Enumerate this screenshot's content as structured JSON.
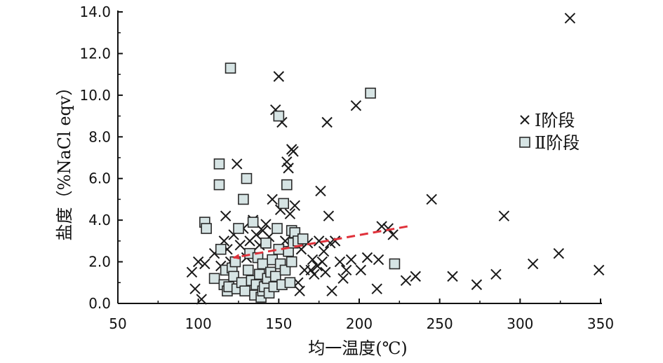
{
  "chart_data": {
    "type": "scatter",
    "xlabel": "均一温度(℃)",
    "ylabel": "盐度（%NaCl eqv）",
    "xlim": [
      50,
      350
    ],
    "ylim": [
      0,
      14
    ],
    "x_ticks": [
      "50",
      "100",
      "150",
      "200",
      "250",
      "300",
      "350"
    ],
    "y_ticks": [
      "0.0",
      "2.0",
      "4.0",
      "6.0",
      "8.0",
      "10.0",
      "12.0",
      "14.0"
    ],
    "legend_position": "right",
    "grid": false,
    "series": [
      {
        "name": "Ⅰ阶段",
        "marker": "x",
        "color": "#1a1a1a",
        "points": [
          [
            96,
            1.5
          ],
          [
            98,
            0.7
          ],
          [
            100,
            2.0
          ],
          [
            102,
            0.2
          ],
          [
            104,
            1.9
          ],
          [
            110,
            2.4
          ],
          [
            114,
            1.8
          ],
          [
            116,
            3.0
          ],
          [
            117,
            4.2
          ],
          [
            118,
            2.6
          ],
          [
            120,
            2.0
          ],
          [
            122,
            3.3
          ],
          [
            124,
            6.7
          ],
          [
            126,
            2.8
          ],
          [
            128,
            3.6
          ],
          [
            130,
            2.2
          ],
          [
            132,
            3.0
          ],
          [
            134,
            4.0
          ],
          [
            136,
            3.3
          ],
          [
            138,
            2.8
          ],
          [
            140,
            3.5
          ],
          [
            142,
            3.8
          ],
          [
            144,
            3.2
          ],
          [
            146,
            5.0
          ],
          [
            148,
            9.3
          ],
          [
            150,
            10.9
          ],
          [
            151,
            4.5
          ],
          [
            152,
            8.7
          ],
          [
            154,
            3.0
          ],
          [
            155,
            6.8
          ],
          [
            156,
            6.5
          ],
          [
            157,
            4.3
          ],
          [
            158,
            7.4
          ],
          [
            159,
            7.3
          ],
          [
            160,
            4.7
          ],
          [
            160,
            3.2
          ],
          [
            162,
            1.0
          ],
          [
            163,
            0.6
          ],
          [
            164,
            2.6
          ],
          [
            166,
            1.6
          ],
          [
            168,
            2.9
          ],
          [
            170,
            1.6
          ],
          [
            171,
            2.1
          ],
          [
            172,
            1.4
          ],
          [
            174,
            1.8
          ],
          [
            175,
            3.0
          ],
          [
            176,
            5.4
          ],
          [
            177,
            2.0
          ],
          [
            178,
            2.5
          ],
          [
            179,
            1.5
          ],
          [
            180,
            8.7
          ],
          [
            181,
            4.2
          ],
          [
            182,
            2.9
          ],
          [
            183,
            0.6
          ],
          [
            185,
            3.0
          ],
          [
            188,
            2.0
          ],
          [
            190,
            1.2
          ],
          [
            192,
            1.6
          ],
          [
            195,
            2.1
          ],
          [
            198,
            9.5
          ],
          [
            201,
            1.6
          ],
          [
            205,
            2.2
          ],
          [
            211,
            0.7
          ],
          [
            212,
            2.1
          ],
          [
            214,
            3.7
          ],
          [
            218,
            3.6
          ],
          [
            221,
            3.3
          ],
          [
            229,
            1.1
          ],
          [
            235,
            1.3
          ],
          [
            245,
            5.0
          ],
          [
            258,
            1.3
          ],
          [
            273,
            0.9
          ],
          [
            285,
            1.4
          ],
          [
            290,
            4.2
          ],
          [
            308,
            1.9
          ],
          [
            324,
            2.4
          ],
          [
            331,
            13.7
          ],
          [
            349,
            1.6
          ]
        ]
      },
      {
        "name": "Ⅱ阶段",
        "marker": "square",
        "color": "#d6e4e4",
        "points": [
          [
            104,
            3.9
          ],
          [
            105,
            3.6
          ],
          [
            110,
            1.2
          ],
          [
            113,
            6.7
          ],
          [
            113,
            5.7
          ],
          [
            114,
            2.6
          ],
          [
            116,
            0.9
          ],
          [
            117,
            1.6
          ],
          [
            118,
            0.6
          ],
          [
            119,
            0.8
          ],
          [
            120,
            11.3
          ],
          [
            121,
            1.7
          ],
          [
            122,
            1.3
          ],
          [
            123,
            2.0
          ],
          [
            124,
            0.7
          ],
          [
            125,
            3.6
          ],
          [
            127,
            1.0
          ],
          [
            128,
            5.0
          ],
          [
            129,
            0.6
          ],
          [
            130,
            6.0
          ],
          [
            131,
            1.6
          ],
          [
            132,
            2.4
          ],
          [
            133,
            1.1
          ],
          [
            134,
            3.9
          ],
          [
            135,
            0.4
          ],
          [
            136,
            0.9
          ],
          [
            137,
            2.2
          ],
          [
            138,
            1.4
          ],
          [
            139,
            0.3
          ],
          [
            140,
            0.6
          ],
          [
            140,
            1.9
          ],
          [
            141,
            0.8
          ],
          [
            142,
            2.9
          ],
          [
            143,
            1.2
          ],
          [
            144,
            0.5
          ],
          [
            145,
            1.5
          ],
          [
            146,
            2.1
          ],
          [
            147,
            0.8
          ],
          [
            148,
            1.3
          ],
          [
            149,
            3.6
          ],
          [
            150,
            9.0
          ],
          [
            150,
            2.6
          ],
          [
            151,
            1.9
          ],
          [
            152,
            0.9
          ],
          [
            153,
            4.8
          ],
          [
            154,
            1.6
          ],
          [
            155,
            5.7
          ],
          [
            156,
            2.5
          ],
          [
            157,
            1.0
          ],
          [
            158,
            2.0
          ],
          [
            158,
            3.5
          ],
          [
            159,
            2.9
          ],
          [
            160,
            3.4
          ],
          [
            162,
            3.0
          ],
          [
            165,
            3.1
          ],
          [
            207,
            10.1
          ],
          [
            222,
            1.9
          ]
        ]
      }
    ],
    "annotations": [
      {
        "type": "arrow",
        "style": "dashed",
        "color": "#e0313a",
        "from": [
          230,
          3.7
        ],
        "to": [
          122,
          2.2
        ]
      }
    ]
  }
}
